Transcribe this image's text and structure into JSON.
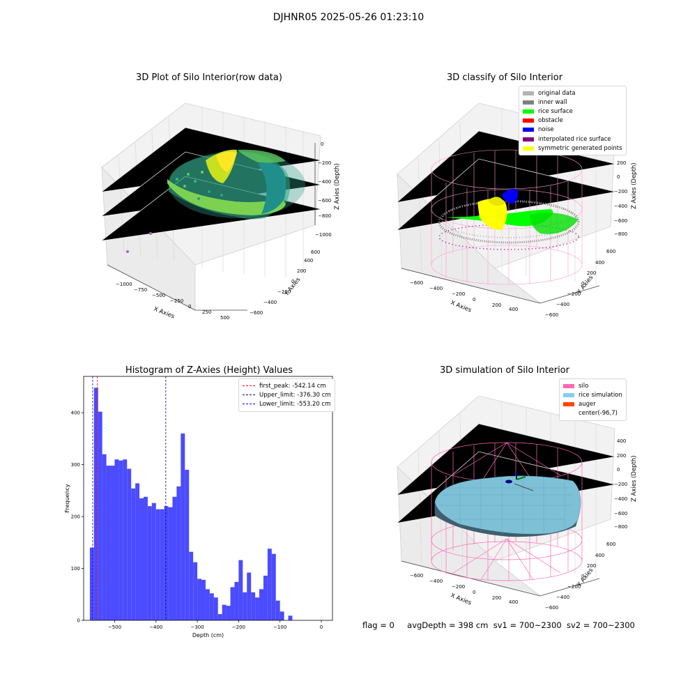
{
  "suptitle": "DJHNR05 2025-05-26 01:23:10",
  "panels": {
    "raw": {
      "title": "3D Plot of Silo Interior(row data)",
      "xlabel": "X Axies",
      "ylabel": "Y Axies",
      "zlabel": "Z Axies (Depth)",
      "xticks": [
        "−1000",
        "−750",
        "−500",
        "−250",
        "0",
        "250",
        "500"
      ],
      "yticks": [
        "−600",
        "−400",
        "−200",
        "0",
        "200",
        "400",
        "600"
      ],
      "zticks": [
        "0",
        "−200",
        "−400",
        "−600",
        "−800",
        "−1000"
      ]
    },
    "classify": {
      "title": "3D classify of Silo Interior",
      "xlabel": "X Axies",
      "ylabel": "Y Axies",
      "zlabel": "Z Axies (Depth)",
      "xticks": [
        "−600",
        "−400",
        "−200",
        "0",
        "200",
        "400"
      ],
      "yticks": [
        "−600",
        "−400",
        "−200",
        "0",
        "200",
        "400",
        "600"
      ],
      "zticks": [
        "400",
        "200",
        "0",
        "−200",
        "−400",
        "−600",
        "−800"
      ],
      "legend": [
        {
          "label": "original data",
          "color": "#b3b3b3"
        },
        {
          "label": "inner wall",
          "color": "#808080"
        },
        {
          "label": "rice surface",
          "color": "#00ff00"
        },
        {
          "label": "obstacle",
          "color": "#ff0000"
        },
        {
          "label": "noise",
          "color": "#0000ff"
        },
        {
          "label": "interpolated rice surface",
          "color": "#800080"
        },
        {
          "label": "symmetric generated points",
          "color": "#ffff00"
        }
      ]
    },
    "simulation": {
      "title": "3D simulation of Silo Interior",
      "xlabel": "X Axies",
      "ylabel": "Y Axies",
      "zlabel": "Z Axies (Depth)",
      "xticks": [
        "−600",
        "−400",
        "−200",
        "0",
        "200",
        "400"
      ],
      "yticks": [
        "−600",
        "−400",
        "−200",
        "0",
        "200",
        "400",
        "600"
      ],
      "zticks": [
        "400",
        "200",
        "0",
        "−200",
        "−400",
        "−600",
        "−800"
      ],
      "legend": [
        {
          "label": "silo",
          "color": "#ff69b4"
        },
        {
          "label": "rice simulation",
          "color": "#87ceeb"
        },
        {
          "label": "auger",
          "color": "#ff4500"
        },
        {
          "label": "center(-96,7)",
          "color": ""
        }
      ]
    }
  },
  "status": {
    "flag": "flag = 0",
    "avg": "avgDepth = 398 cm",
    "sv1": "sv1 = 700~2300",
    "sv2": "sv2 = 700~2300"
  },
  "chart_data": {
    "type": "bar",
    "title": "Histogram of Z-Axies (Height) Values",
    "xlabel": "Depth (cm)",
    "ylabel": "Frequency",
    "xlim": [
      -575,
      27
    ],
    "ylim": [
      0,
      470
    ],
    "xticks": [
      "−500",
      "−400",
      "−300",
      "−200",
      "−100",
      "0"
    ],
    "yticks": [
      "0",
      "100",
      "200",
      "300",
      "400"
    ],
    "bin_start": -560,
    "bin_width": 10,
    "values": [
      140,
      448,
      402,
      320,
      298,
      298,
      310,
      308,
      310,
      292,
      254,
      264,
      235,
      238,
      220,
      226,
      214,
      214,
      220,
      218,
      238,
      258,
      360,
      290,
      132,
      112,
      80,
      78,
      60,
      52,
      44,
      12,
      30,
      28,
      64,
      74,
      116,
      54,
      92,
      54,
      44,
      60,
      86,
      138,
      128,
      38,
      17,
      0,
      9
    ],
    "lines": [
      {
        "label": "first_peak: -542.14 cm",
        "value": -542.14,
        "color": "#ff0000"
      },
      {
        "label": "Upper_limit: -376.30 cm",
        "value": -376.3,
        "color": "#00008b"
      },
      {
        "label": "Lower_limit: -553.20 cm",
        "value": -553.2,
        "color": "#0000ff"
      }
    ],
    "bar_color": "#4b4bff"
  }
}
